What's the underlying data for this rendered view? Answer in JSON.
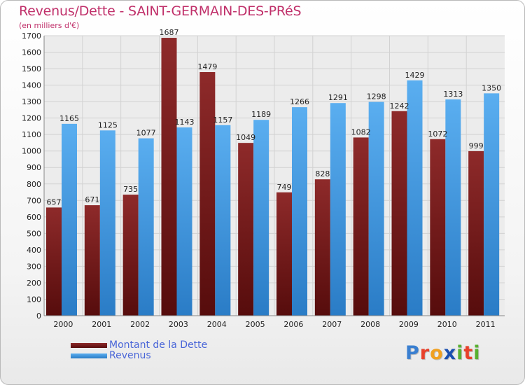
{
  "colors": {
    "title": "#c0306a",
    "dette": "#7a1f1f",
    "revenus": "#3a8fdc",
    "legend_text": "#4a66d8",
    "axis_text": "#222222"
  },
  "chart_data": {
    "type": "bar",
    "title": "Revenus/Dette - SAINT-GERMAIN-DES-PRéS",
    "subtitle": "(en milliers d'€)",
    "xlabel": "",
    "ylabel": "",
    "ylim": [
      0,
      1700
    ],
    "yticks": [
      0,
      100,
      200,
      300,
      400,
      500,
      600,
      700,
      800,
      900,
      1000,
      1100,
      1200,
      1300,
      1400,
      1500,
      1600,
      1700
    ],
    "grid": true,
    "legend_position": "bottom-left",
    "categories": [
      "2000",
      "2001",
      "2002",
      "2003",
      "2004",
      "2005",
      "2006",
      "2007",
      "2008",
      "2009",
      "2010",
      "2011"
    ],
    "series": [
      {
        "name": "Montant de la Dette",
        "values": [
          657,
          671,
          735,
          1687,
          1479,
          1049,
          749,
          828,
          1082,
          1242,
          1072,
          999
        ]
      },
      {
        "name": "Revenus",
        "values": [
          1165,
          1125,
          1077,
          1143,
          1157,
          1189,
          1266,
          1291,
          1298,
          1429,
          1313,
          1350
        ]
      }
    ]
  },
  "logo": {
    "letters": [
      "P",
      "r",
      "o",
      "x",
      "i",
      "t",
      "i"
    ]
  }
}
